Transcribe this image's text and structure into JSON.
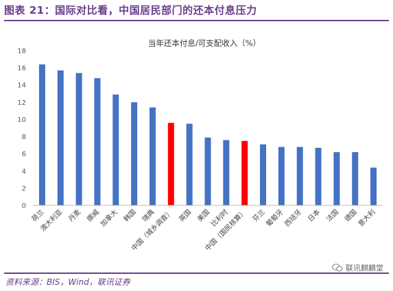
{
  "figure_title": "图表 21：国际对比看，中国居民部门的还本付息压力",
  "source": "资料来源：BIS，Wind，联讯证券",
  "watermark": "联讯麒麟堂",
  "colors": {
    "accent": "#6a3d8a",
    "bar": "#4472c4",
    "highlight": "#ff0000"
  },
  "chart_data": {
    "type": "bar",
    "title": "当年还本付息/可支配收入（%）",
    "xlabel": "",
    "ylabel": "",
    "ylim": [
      0,
      18
    ],
    "yticks": [
      0,
      2,
      4,
      6,
      8,
      10,
      12,
      14,
      16,
      18
    ],
    "grid": false,
    "legend": "none",
    "categories": [
      "荷兰",
      "澳大利亚",
      "丹麦",
      "挪威",
      "加拿大",
      "韩国",
      "瑞典",
      "中国（城乡调查）",
      "英国",
      "美国",
      "比利时",
      "中国（国民核算）",
      "芬兰",
      "葡萄牙",
      "西班牙",
      "日本",
      "法国",
      "德国",
      "意大利"
    ],
    "values": [
      16.4,
      15.7,
      15.4,
      14.8,
      12.9,
      12.0,
      11.4,
      9.6,
      9.5,
      7.9,
      7.6,
      7.5,
      7.1,
      6.8,
      6.8,
      6.7,
      6.2,
      6.2,
      4.4
    ],
    "highlight": [
      "中国（城乡调查）",
      "中国（国民核算）"
    ]
  }
}
